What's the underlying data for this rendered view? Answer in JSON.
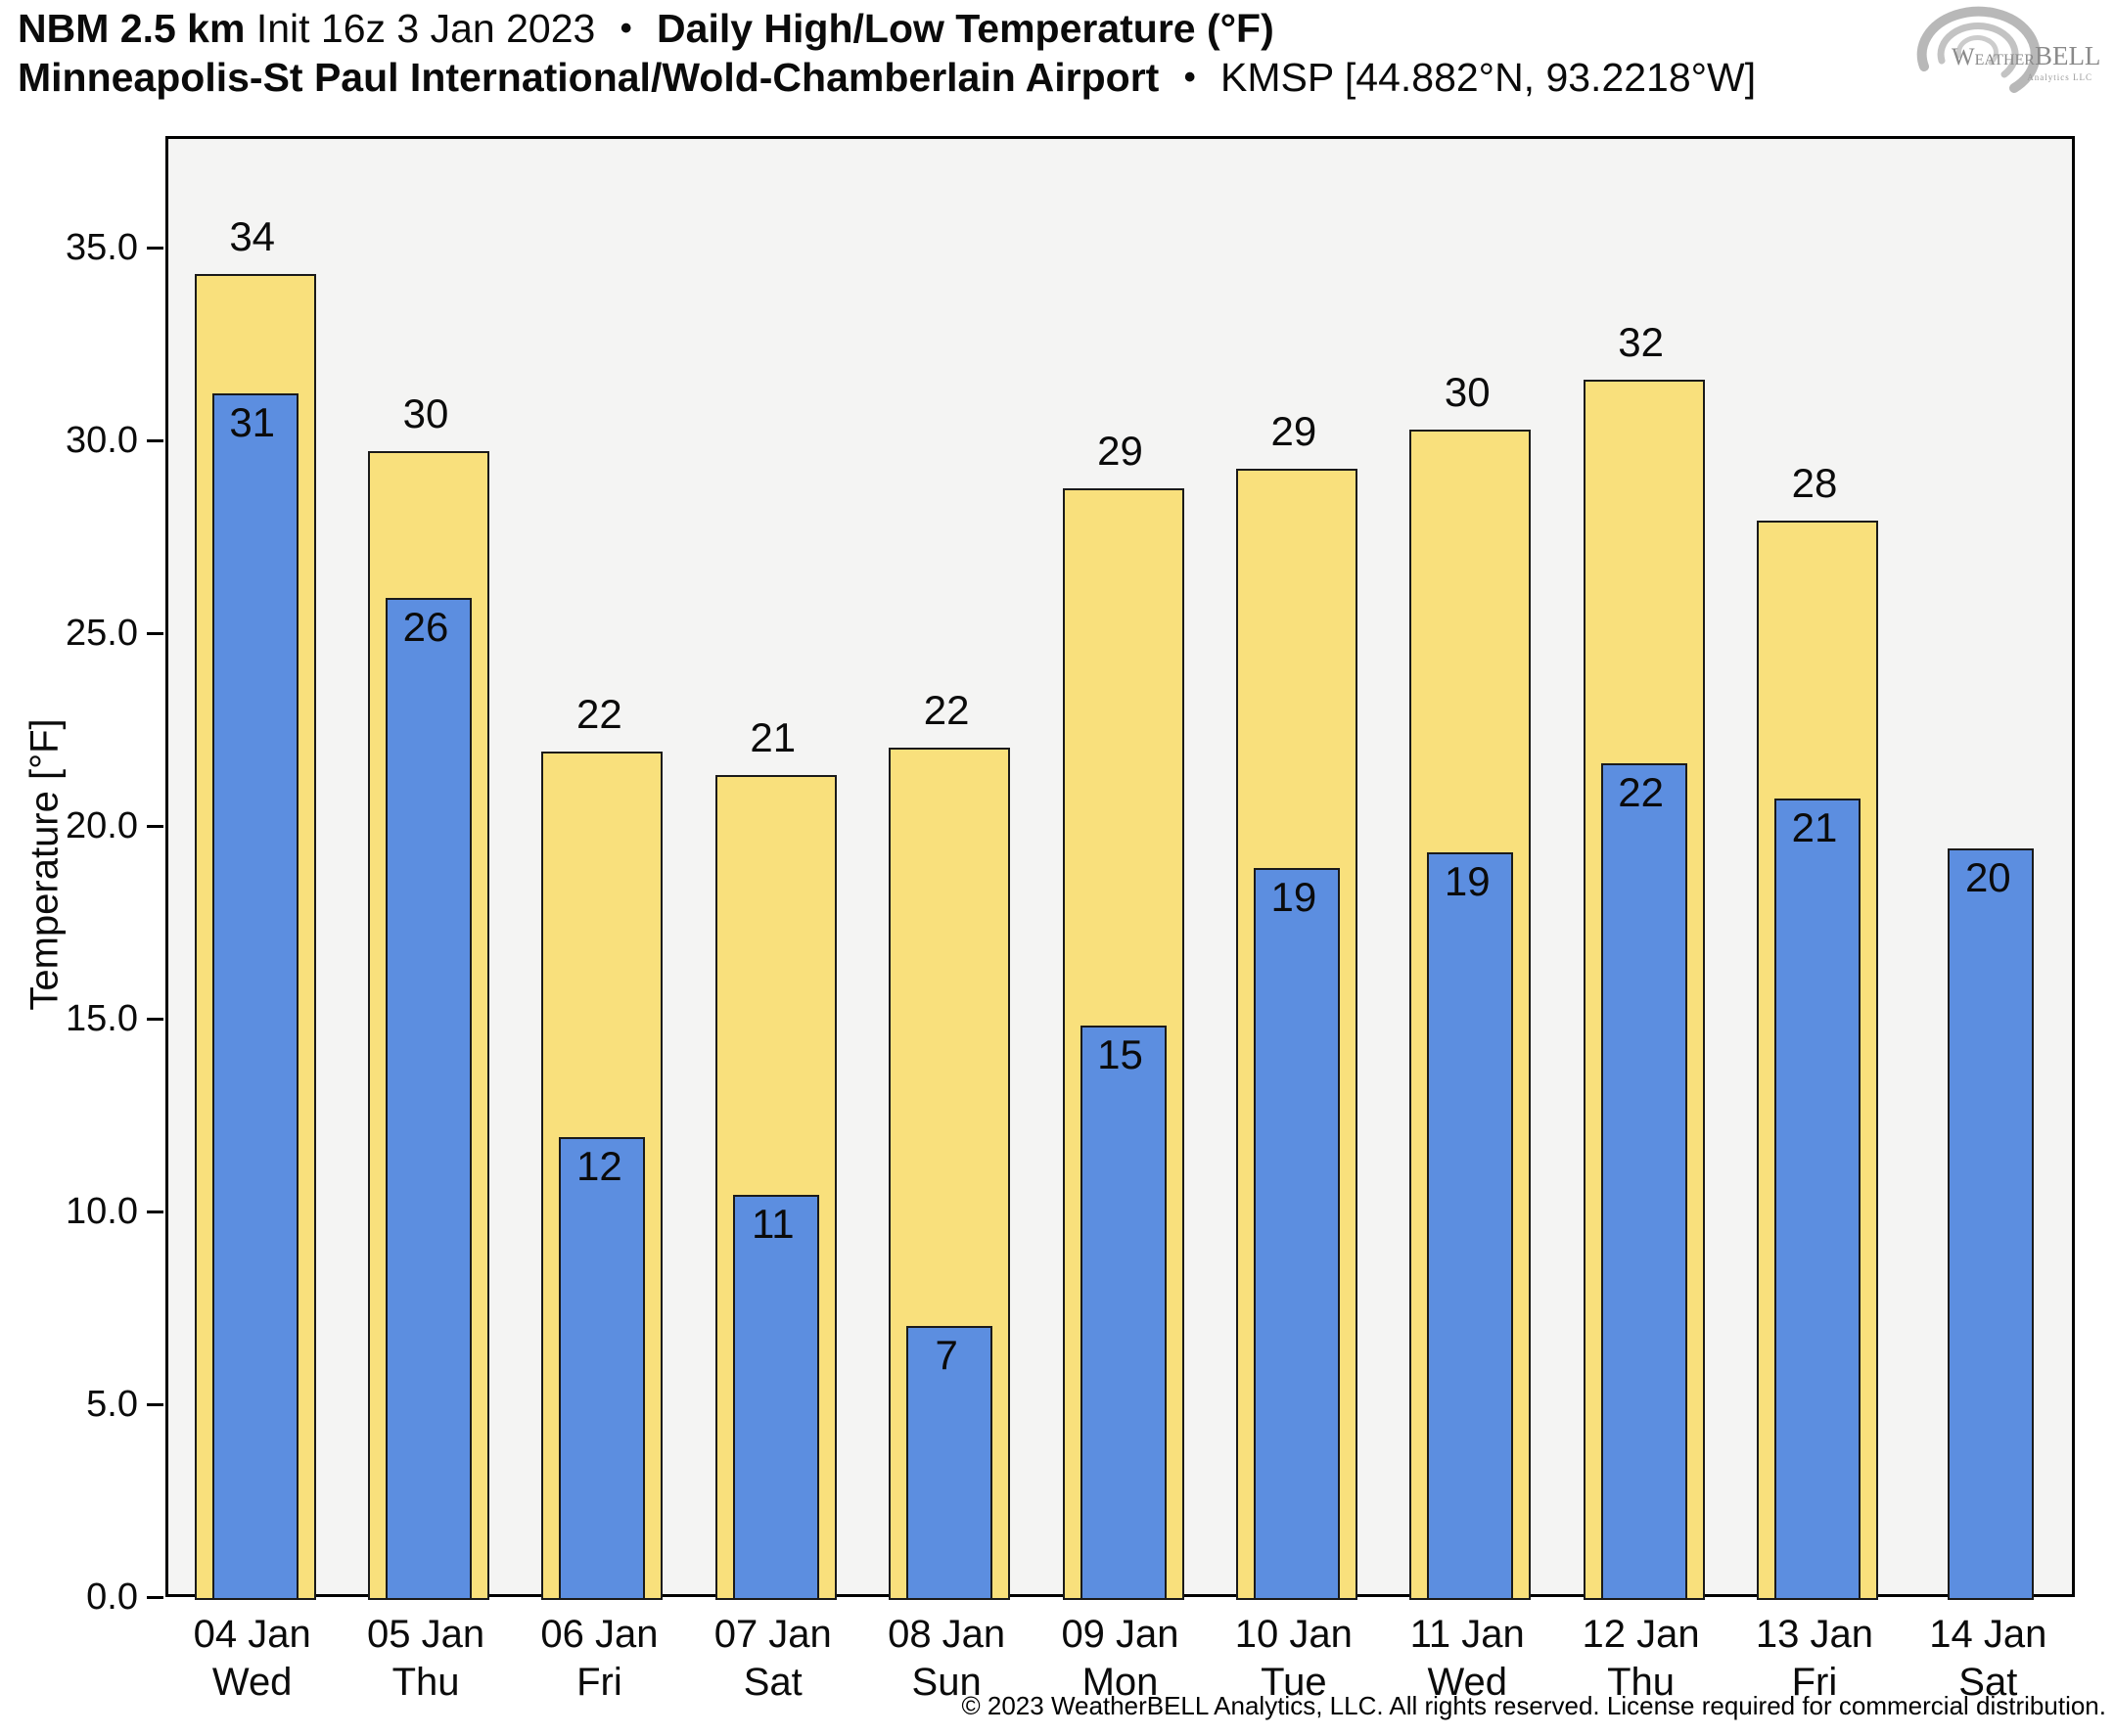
{
  "header": {
    "model": "NBM 2.5 km",
    "init": "Init 16z 3 Jan 2023",
    "separator": "•",
    "product": "Daily High/Low Temperature (°F)",
    "station_name": "Minneapolis-St Paul International/Wold-Chamberlain Airport",
    "station_id": "KMSP [44.882°N, 93.2218°W]"
  },
  "logo": {
    "brand_w": "W",
    "brand_eather": "EATHER",
    "brand_bell": "BELL",
    "brand_sub": "Analytics LLC"
  },
  "chart_data": {
    "type": "bar",
    "title": "Daily High/Low Temperature (°F)",
    "ylabel": "Temperature [°F]",
    "ylim": [
      0,
      37.9
    ],
    "grid": false,
    "legend": "none",
    "plot_bg": "#F4F4F3",
    "bar_edge": "#1a1a1a",
    "yticks": [
      {
        "value": 0,
        "label": "0.0"
      },
      {
        "value": 5,
        "label": "5.0"
      },
      {
        "value": 10,
        "label": "10.0"
      },
      {
        "value": 15,
        "label": "15.0"
      },
      {
        "value": 20,
        "label": "20.0"
      },
      {
        "value": 25,
        "label": "25.0"
      },
      {
        "value": 30,
        "label": "30.0"
      },
      {
        "value": 35,
        "label": "35.0"
      }
    ],
    "categories": [
      {
        "date": "04 Jan",
        "weekday": "Wed"
      },
      {
        "date": "05 Jan",
        "weekday": "Thu"
      },
      {
        "date": "06 Jan",
        "weekday": "Fri"
      },
      {
        "date": "07 Jan",
        "weekday": "Sat"
      },
      {
        "date": "08 Jan",
        "weekday": "Sun"
      },
      {
        "date": "09 Jan",
        "weekday": "Mon"
      },
      {
        "date": "10 Jan",
        "weekday": "Tue"
      },
      {
        "date": "11 Jan",
        "weekday": "Wed"
      },
      {
        "date": "12 Jan",
        "weekday": "Thu"
      },
      {
        "date": "13 Jan",
        "weekday": "Fri"
      },
      {
        "date": "14 Jan",
        "weekday": "Sat"
      }
    ],
    "series": [
      {
        "name": "High",
        "color": "#F9E07C",
        "labels": [
          34,
          30,
          22,
          21,
          22,
          29,
          29,
          30,
          32,
          28,
          null
        ],
        "values": [
          34.4,
          29.8,
          22.0,
          21.4,
          22.1,
          28.85,
          29.35,
          30.35,
          31.65,
          28.0,
          null
        ]
      },
      {
        "name": "Low",
        "color": "#5C8EE0",
        "labels": [
          31,
          26,
          12,
          11,
          7,
          15,
          19,
          19,
          22,
          21,
          20
        ],
        "values": [
          31.3,
          26.0,
          12.0,
          10.5,
          7.1,
          14.9,
          19.0,
          19.4,
          21.7,
          20.8,
          19.5
        ]
      }
    ]
  },
  "footer": {
    "copyright": "© 2023 WeatherBELL Analytics, LLC. All rights reserved. License required for commercial distribution."
  }
}
